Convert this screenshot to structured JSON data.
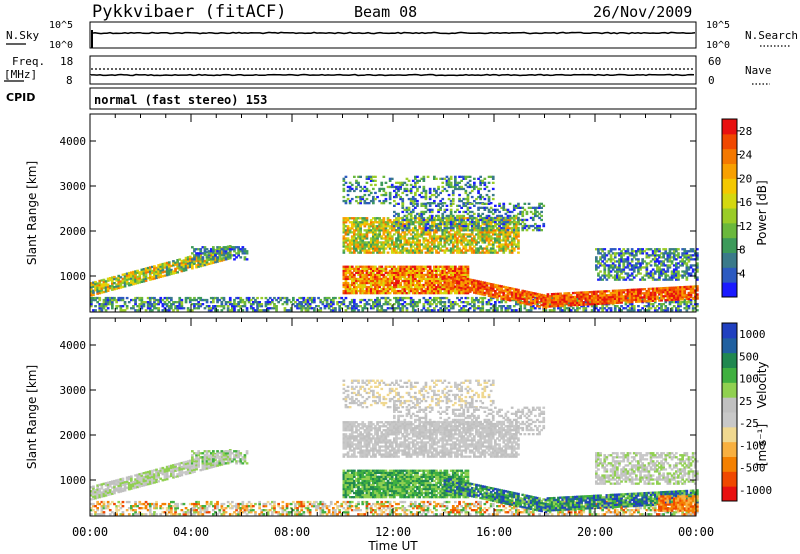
{
  "header": {
    "radar": "Pykkvibaer (fitACF)",
    "beam": "Beam 08",
    "date": "26/Nov/2009"
  },
  "strip_labels": {
    "nsky": "N.Sky",
    "nsearch": "N.Search",
    "freq_line1": "Freq.",
    "freq_line2": "[MHz]",
    "nave": "Nave",
    "cpid": "CPID",
    "cpid_value": "normal (fast stereo) 153"
  },
  "strip_ticks": {
    "nsky_top": "10^5",
    "nsky_bottom": "10^0",
    "nsearch_top": "10^5",
    "nsearch_bottom": "10^0",
    "freq_top": "18",
    "freq_bottom": "8",
    "nave_top": "60",
    "nave_bottom": "0"
  },
  "colors": {
    "power_scale": [
      "#1a1aff",
      "#2c5ac0",
      "#3a7a8a",
      "#3c9a5a",
      "#6ab83c",
      "#9acc28",
      "#d4d810",
      "#f4c800",
      "#f8a000",
      "#f47800",
      "#f04800",
      "#e81010"
    ],
    "velocity_scale": [
      "#e81010",
      "#f04800",
      "#f48000",
      "#f8b040",
      "#f0d890",
      "#c8c8c8",
      "#c0c0c0",
      "#90d050",
      "#40b040",
      "#208850",
      "#2060a0",
      "#2040c0"
    ]
  },
  "chart_data": [
    {
      "type": "heatmap",
      "title": "Power",
      "xlabel": "",
      "ylabel": "Slant Range [km]",
      "xlim": [
        "00:00",
        "24:00"
      ],
      "ylim": [
        200,
        4600
      ],
      "x_ticks": [
        "00:00",
        "04:00",
        "08:00",
        "12:00",
        "16:00",
        "20:00",
        "00:00"
      ],
      "y_ticks": [
        "1000",
        "2000",
        "3000",
        "4000"
      ],
      "colorbar": {
        "label": "Power [dB]",
        "ticks": [
          "4",
          "8",
          "12",
          "16",
          "20",
          "24",
          "28"
        ],
        "range": [
          0,
          30
        ]
      }
    },
    {
      "type": "heatmap",
      "title": "Velocity",
      "xlabel": "Time UT",
      "ylabel": "Slant Range [km]",
      "xlim": [
        "00:00",
        "24:00"
      ],
      "ylim": [
        200,
        4600
      ],
      "x_ticks": [
        "00:00",
        "04:00",
        "08:00",
        "12:00",
        "16:00",
        "20:00",
        "00:00"
      ],
      "y_ticks": [
        "1000",
        "2000",
        "3000",
        "4000"
      ],
      "colorbar": {
        "label_main": "Velocity",
        "label_unit": "[m s⁻¹]",
        "ticks": [
          "1000",
          "500",
          "100",
          "25",
          "-25",
          "-100",
          "-500",
          "-1000"
        ]
      }
    }
  ]
}
